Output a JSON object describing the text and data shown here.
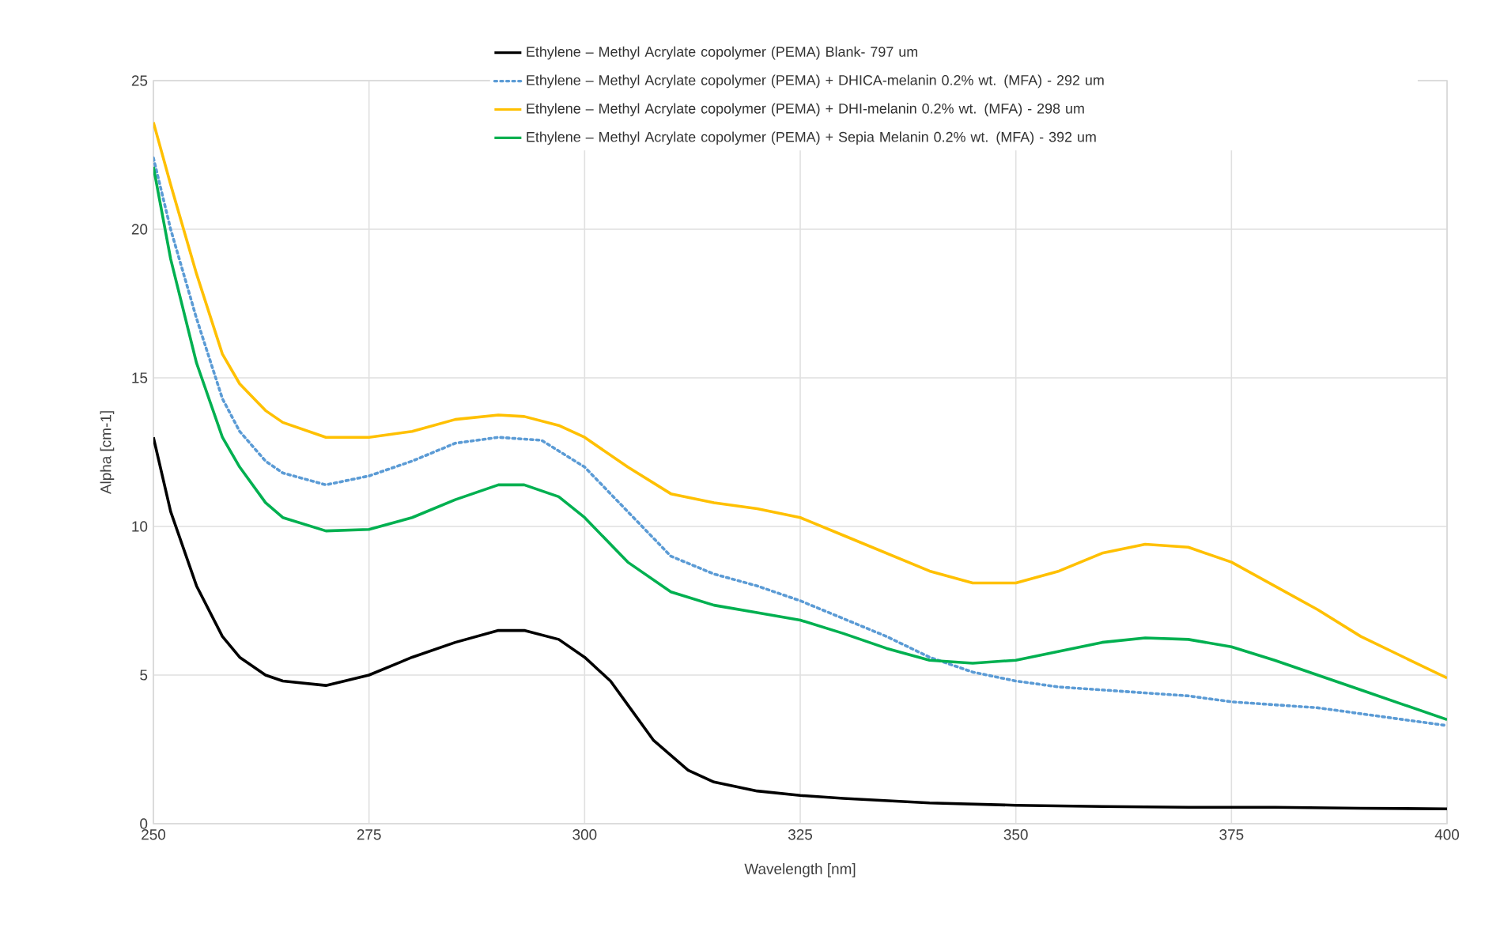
{
  "chart_data": {
    "type": "line",
    "xlabel": "Wavelength [nm]",
    "ylabel": "Alpha [cm-1]",
    "xlim": [
      250,
      400
    ],
    "ylim": [
      0,
      25
    ],
    "xticks": [
      250,
      275,
      300,
      325,
      350,
      375,
      400
    ],
    "yticks": [
      0,
      5,
      10,
      15,
      20,
      25
    ],
    "grid": true,
    "legend": "top right",
    "series": [
      {
        "name": "Ethylene – Methyl Acrylate copolymer (PEMA) Blank- 797 um",
        "color": "#000000",
        "line_style": "solid",
        "x": [
          250,
          252,
          255,
          258,
          260,
          263,
          265,
          270,
          275,
          280,
          285,
          290,
          293,
          297,
          300,
          303,
          305,
          308,
          312,
          315,
          320,
          325,
          330,
          340,
          350,
          360,
          370,
          380,
          390,
          400
        ],
        "values": [
          13.0,
          10.5,
          8.0,
          6.3,
          5.6,
          5.0,
          4.8,
          4.65,
          5.0,
          5.6,
          6.1,
          6.5,
          6.5,
          6.2,
          5.6,
          4.8,
          4.0,
          2.8,
          1.8,
          1.4,
          1.1,
          0.95,
          0.85,
          0.7,
          0.62,
          0.58,
          0.55,
          0.55,
          0.52,
          0.5
        ]
      },
      {
        "name": "Ethylene – Methyl Acrylate copolymer (PEMA) + DHICA-melanin 0.2% wt. (MFA) - 292 um",
        "color": "#5b9bd5",
        "line_style": "dotted",
        "x": [
          250,
          252,
          255,
          258,
          260,
          263,
          265,
          270,
          275,
          280,
          285,
          290,
          295,
          300,
          305,
          310,
          315,
          320,
          325,
          330,
          335,
          340,
          345,
          350,
          355,
          360,
          365,
          370,
          375,
          380,
          385,
          390,
          395,
          400
        ],
        "values": [
          22.4,
          20.0,
          17.0,
          14.3,
          13.2,
          12.2,
          11.8,
          11.4,
          11.7,
          12.2,
          12.8,
          13.0,
          12.9,
          12.0,
          10.5,
          9.0,
          8.4,
          8.0,
          7.5,
          6.9,
          6.3,
          5.6,
          5.1,
          4.8,
          4.6,
          4.5,
          4.4,
          4.3,
          4.1,
          4.0,
          3.9,
          3.7,
          3.5,
          3.3
        ]
      },
      {
        "name": "Ethylene – Methyl Acrylate copolymer (PEMA) + DHI-melanin 0.2% wt. (MFA) - 298 um",
        "color": "#ffc000",
        "line_style": "solid",
        "x": [
          250,
          252,
          255,
          258,
          260,
          263,
          265,
          270,
          275,
          280,
          285,
          290,
          293,
          297,
          300,
          305,
          310,
          315,
          320,
          325,
          330,
          335,
          340,
          345,
          350,
          355,
          360,
          365,
          370,
          375,
          380,
          385,
          390,
          395,
          400
        ],
        "values": [
          23.6,
          21.5,
          18.5,
          15.8,
          14.8,
          13.9,
          13.5,
          13.0,
          13.0,
          13.2,
          13.6,
          13.75,
          13.7,
          13.4,
          13.0,
          12.0,
          11.1,
          10.8,
          10.6,
          10.3,
          9.7,
          9.1,
          8.5,
          8.1,
          8.1,
          8.5,
          9.1,
          9.4,
          9.3,
          8.8,
          8.0,
          7.2,
          6.3,
          5.6,
          4.9
        ]
      },
      {
        "name": "Ethylene – Methyl Acrylate copolymer (PEMA) + Sepia Melanin 0.2% wt. (MFA) - 392 um",
        "color": "#00b050",
        "line_style": "solid",
        "x": [
          250,
          252,
          255,
          258,
          260,
          263,
          265,
          270,
          275,
          280,
          285,
          290,
          293,
          297,
          300,
          305,
          310,
          315,
          320,
          325,
          330,
          335,
          340,
          345,
          350,
          355,
          360,
          365,
          370,
          375,
          380,
          385,
          390,
          395,
          400
        ],
        "values": [
          22.1,
          19.0,
          15.5,
          13.0,
          12.0,
          10.8,
          10.3,
          9.85,
          9.9,
          10.3,
          10.9,
          11.4,
          11.4,
          11.0,
          10.3,
          8.8,
          7.8,
          7.35,
          7.1,
          6.85,
          6.4,
          5.9,
          5.5,
          5.4,
          5.5,
          5.8,
          6.1,
          6.25,
          6.2,
          5.95,
          5.5,
          5.0,
          4.5,
          4.0,
          3.5
        ]
      }
    ]
  }
}
